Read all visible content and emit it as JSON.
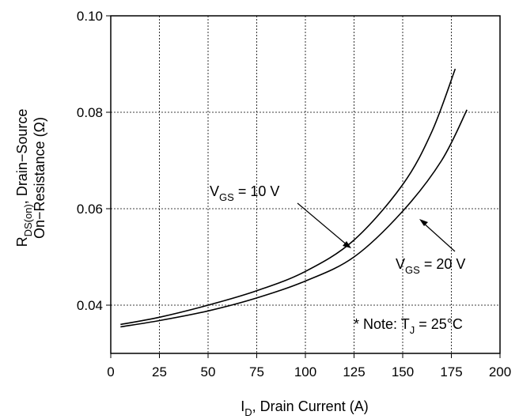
{
  "chart_data": {
    "type": "line",
    "title": "",
    "xlabel": {
      "main": "I",
      "sub": "D",
      "rest": ", Drain Current (A)"
    },
    "ylabel": {
      "line1_main": "R",
      "line1_sub": "DS(on)",
      "line1_rest": ", Drain−Source",
      "line2": "On−Resistance (Ω)"
    },
    "xlim": [
      0,
      200
    ],
    "ylim": [
      0.03,
      0.1
    ],
    "xticks": [
      0,
      25,
      50,
      75,
      100,
      125,
      150,
      175,
      200
    ],
    "xtick_labels": [
      "0",
      "25",
      "50",
      "75",
      "100",
      "125",
      "150",
      "175",
      "200"
    ],
    "yticks": [
      0.04,
      0.06,
      0.08,
      0.1
    ],
    "ytick_labels": [
      "0.04",
      "0.06",
      "0.08",
      "0.10"
    ],
    "grid": true,
    "series": [
      {
        "name": "VGS = 10 V",
        "x": [
          5,
          25,
          50,
          75,
          100,
          125,
          150,
          165,
          177
        ],
        "y": [
          0.036,
          0.0375,
          0.04,
          0.043,
          0.047,
          0.0535,
          0.065,
          0.076,
          0.089
        ]
      },
      {
        "name": "VGS = 20 V",
        "x": [
          5,
          25,
          50,
          75,
          100,
          125,
          150,
          170,
          183
        ],
        "y": [
          0.0355,
          0.0368,
          0.0388,
          0.0415,
          0.045,
          0.05,
          0.0595,
          0.07,
          0.0805
        ]
      }
    ],
    "annotations": {
      "vgs10": {
        "main": "V",
        "sub": "GS",
        "rest": " = 10 V"
      },
      "vgs20": {
        "main": "V",
        "sub": "GS",
        "rest": " = 20 V"
      },
      "note": {
        "main": "* Note: T",
        "sub": "J",
        "rest": " = 25°C"
      }
    }
  }
}
